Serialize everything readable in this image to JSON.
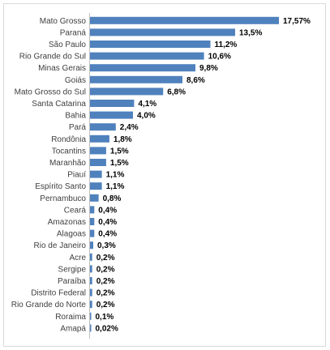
{
  "chart_data": {
    "type": "bar",
    "orientation": "horizontal",
    "bar_color": "#4f81bd",
    "categories": [
      "Mato Grosso",
      "Paraná",
      "São Paulo",
      "Rio Grande do Sul",
      "Minas Gerais",
      "Goiás",
      "Mato Grosso do Sul",
      "Santa Catarina",
      "Bahia",
      "Pará",
      "Rondônia",
      "Tocantins",
      "Maranhão",
      "Piauí",
      "Espírito Santo",
      "Pernambuco",
      "Ceará",
      "Amazonas",
      "Alagoas",
      "Rio de Janeiro",
      "Acre",
      "Sergipe",
      "Paraíba",
      "Distrito Federal",
      "Rio Grande do Norte",
      "Roraima",
      "Amapá"
    ],
    "values": [
      17.57,
      13.5,
      11.2,
      10.6,
      9.8,
      8.6,
      6.8,
      4.1,
      4.0,
      2.4,
      1.8,
      1.5,
      1.5,
      1.1,
      1.1,
      0.8,
      0.4,
      0.4,
      0.4,
      0.3,
      0.2,
      0.2,
      0.2,
      0.2,
      0.2,
      0.1,
      0.02
    ],
    "value_labels": [
      "17,57%",
      "13,5%",
      "11,2%",
      "10,6%",
      "9,8%",
      "8,6%",
      "6,8%",
      "4,1%",
      "4,0%",
      "2,4%",
      "1,8%",
      "1,5%",
      "1,5%",
      "1,1%",
      "1,1%",
      "0,8%",
      "0,4%",
      "0,4%",
      "0,4%",
      "0,3%",
      "0,2%",
      "0,2%",
      "0,2%",
      "0,2%",
      "0,2%",
      "0,1%",
      "0,02%"
    ],
    "title": "",
    "xlabel": "",
    "ylabel": "",
    "xlim": [
      0,
      17.57
    ],
    "grid": false,
    "legend": "none"
  }
}
